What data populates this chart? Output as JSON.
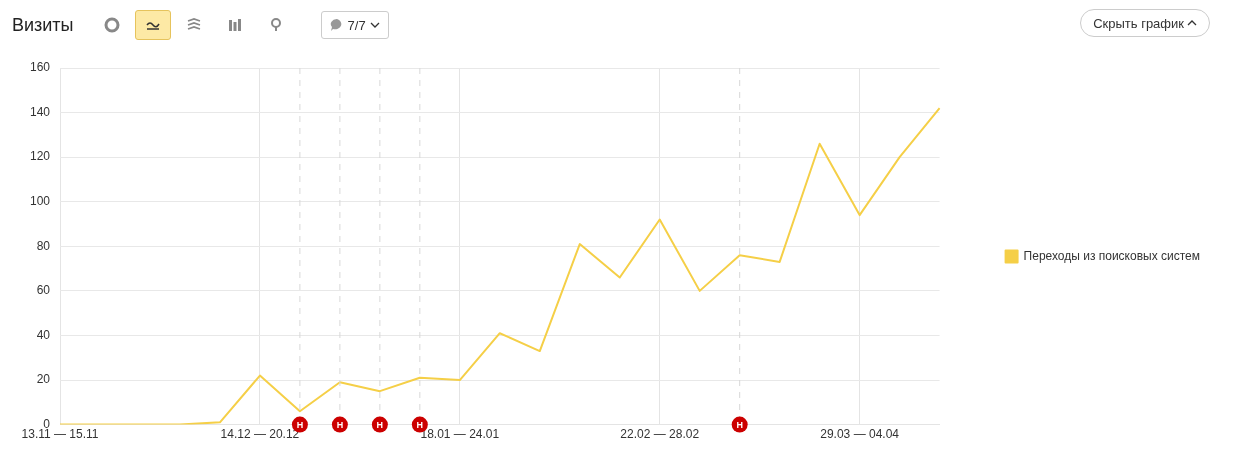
{
  "chart_data": {
    "type": "line",
    "title": "Визиты",
    "categories": [
      "13.11 — 15.11",
      null,
      null,
      null,
      null,
      "14.12 — 20.12",
      null,
      null,
      null,
      null,
      "18.01 — 24.01",
      null,
      null,
      null,
      null,
      "22.02 — 28.02",
      null,
      null,
      null,
      null,
      "29.03 — 04.04",
      null,
      null
    ],
    "series": [
      {
        "name": "Переходы из поисковых систем",
        "color": "#f5cf47",
        "values": [
          0,
          0,
          0,
          0,
          1,
          22,
          6,
          19,
          15,
          21,
          20,
          41,
          33,
          81,
          66,
          92,
          60,
          76,
          73,
          126,
          94,
          120,
          142
        ]
      }
    ],
    "ylim": [
      0,
      160
    ],
    "yticks": [
      0,
      20,
      40,
      60,
      80,
      100,
      120,
      140,
      160
    ],
    "annotations": [
      "7/7",
      "Скрыть график",
      "Н",
      "Н",
      "Н",
      "Н",
      "Н"
    ],
    "grid": true,
    "legend": "right",
    "marker": "none",
    "line_style": "solid"
  }
}
